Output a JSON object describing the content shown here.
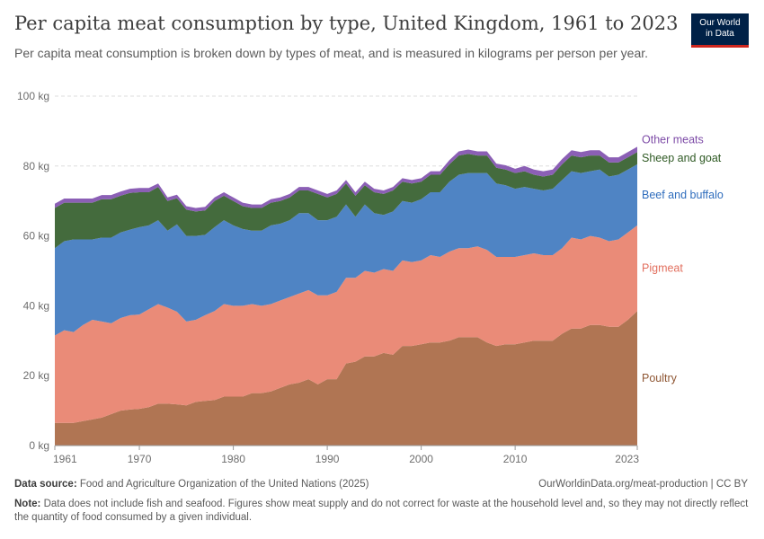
{
  "header": {
    "title": "Per capita meat consumption by type, United Kingdom, 1961 to 2023",
    "subtitle": "Per capita meat consumption is broken down by types of meat, and is measured in kilograms per person per year."
  },
  "logo": {
    "line1": "Our World",
    "line2": "in Data"
  },
  "footer": {
    "source_label": "Data source:",
    "source_text": " Food and Agriculture Organization of the United Nations (2025)",
    "url": "OurWorldinData.org/meat-production | CC BY",
    "note_label": "Note:",
    "note_text": " Data does not include fish and seafood. Figures show meat supply and do not correct for waste at the household level and, so they may not directly reflect the quantity of food consumed by a given individual."
  },
  "colors": {
    "Poultry": "#b07553",
    "Pigmeat": "#ea8b78",
    "Beef and buffalo": "#4f84c4",
    "Sheep and goat": "#446b3d",
    "Other meats": "#8b5fb5",
    "label_Poultry": "#8f5734",
    "label_Pigmeat": "#e2705f",
    "label_Beef and buffalo": "#2f6dbd",
    "label_Sheep and goat": "#2f5a24",
    "label_Other meats": "#7d4ba7"
  },
  "chart_data": {
    "type": "area",
    "stacked": true,
    "xlim": [
      1961,
      2023
    ],
    "ylim": [
      0,
      100
    ],
    "x_ticks": [
      "1961",
      "1970",
      "1980",
      "1990",
      "2000",
      "2010",
      "2023"
    ],
    "y_ticks": [
      "0 kg",
      "20 kg",
      "40 kg",
      "60 kg",
      "80 kg",
      "100 kg"
    ],
    "grid": "horizontal dashed",
    "legend": "right, labels at series ends",
    "x": [
      1961,
      1962,
      1963,
      1964,
      1965,
      1966,
      1967,
      1968,
      1969,
      1970,
      1971,
      1972,
      1973,
      1974,
      1975,
      1976,
      1977,
      1978,
      1979,
      1980,
      1981,
      1982,
      1983,
      1984,
      1985,
      1986,
      1987,
      1988,
      1989,
      1990,
      1991,
      1992,
      1993,
      1994,
      1995,
      1996,
      1997,
      1998,
      1999,
      2000,
      2001,
      2002,
      2003,
      2004,
      2005,
      2006,
      2007,
      2008,
      2009,
      2010,
      2011,
      2012,
      2013,
      2014,
      2015,
      2016,
      2017,
      2018,
      2019,
      2020,
      2021,
      2022,
      2023
    ],
    "series": [
      {
        "name": "Poultry",
        "values": [
          6.5,
          6.5,
          6.5,
          7.0,
          7.5,
          8.0,
          9.0,
          10.0,
          10.3,
          10.5,
          11.0,
          12.0,
          12.0,
          11.8,
          11.5,
          12.5,
          12.8,
          13.0,
          14.0,
          14.0,
          14.0,
          15.0,
          15.0,
          15.5,
          16.5,
          17.5,
          18.0,
          19.0,
          17.5,
          19.0,
          19.0,
          23.5,
          24.0,
          25.5,
          25.5,
          26.5,
          26.0,
          28.5,
          28.5,
          29.0,
          29.5,
          29.5,
          30.0,
          31.0,
          31.0,
          31.0,
          29.5,
          28.5,
          29.0,
          29.0,
          29.5,
          30.0,
          30.0,
          30.0,
          32.0,
          33.5,
          33.5,
          34.5,
          34.5,
          34.0,
          34.0,
          36.0,
          38.5
        ]
      },
      {
        "name": "Pigmeat",
        "values": [
          25.0,
          26.5,
          26.0,
          27.5,
          28.5,
          27.5,
          26.0,
          26.5,
          27.0,
          27.0,
          28.0,
          28.5,
          27.5,
          26.5,
          24.0,
          23.5,
          24.5,
          25.5,
          26.5,
          26.0,
          26.0,
          25.5,
          25.0,
          25.0,
          25.0,
          25.0,
          25.5,
          25.5,
          25.5,
          24.0,
          25.0,
          24.5,
          24.0,
          24.5,
          24.0,
          24.0,
          24.0,
          24.5,
          24.0,
          24.0,
          25.0,
          24.5,
          25.5,
          25.5,
          25.5,
          26.0,
          26.5,
          25.5,
          25.0,
          25.0,
          25.0,
          25.0,
          24.5,
          24.5,
          24.5,
          26.0,
          25.5,
          25.5,
          25.0,
          24.5,
          25.0,
          25.0,
          24.5
        ]
      },
      {
        "name": "Beef and buffalo",
        "values": [
          25.0,
          25.5,
          26.5,
          24.5,
          23.0,
          24.0,
          24.5,
          24.5,
          24.5,
          25.0,
          24.0,
          24.0,
          22.0,
          25.0,
          24.5,
          24.0,
          23.0,
          24.0,
          24.0,
          23.0,
          22.0,
          21.0,
          21.5,
          22.5,
          22.0,
          22.0,
          23.0,
          22.0,
          21.5,
          21.5,
          21.5,
          21.0,
          17.5,
          19.0,
          17.0,
          15.5,
          17.0,
          17.0,
          17.0,
          17.5,
          18.0,
          18.5,
          20.0,
          21.0,
          21.5,
          21.0,
          22.0,
          21.0,
          20.5,
          19.5,
          19.5,
          18.5,
          18.5,
          19.0,
          19.5,
          19.0,
          19.0,
          18.5,
          19.5,
          18.5,
          18.5,
          18.0,
          17.5
        ]
      },
      {
        "name": "Sheep and goat",
        "values": [
          11.5,
          11.0,
          10.5,
          10.5,
          10.5,
          11.0,
          11.0,
          10.5,
          10.5,
          10.0,
          9.5,
          9.5,
          8.5,
          7.5,
          7.5,
          7.0,
          7.0,
          7.5,
          7.0,
          7.0,
          6.5,
          6.5,
          6.5,
          6.5,
          6.5,
          6.5,
          6.5,
          6.5,
          7.5,
          6.5,
          6.5,
          6.0,
          6.0,
          5.5,
          6.0,
          6.0,
          6.0,
          5.5,
          5.5,
          5.0,
          5.0,
          5.0,
          5.0,
          5.5,
          5.5,
          5.0,
          5.0,
          4.5,
          4.5,
          4.5,
          4.5,
          4.0,
          4.0,
          4.0,
          4.5,
          4.5,
          4.5,
          4.5,
          4.0,
          4.0,
          3.5,
          3.5,
          3.5
        ]
      },
      {
        "name": "Other meats",
        "values": [
          1.2,
          1.2,
          1.2,
          1.2,
          1.2,
          1.2,
          1.2,
          1.2,
          1.2,
          1.2,
          1.2,
          1.0,
          1.0,
          1.0,
          1.0,
          1.0,
          1.0,
          1.0,
          1.0,
          1.0,
          1.0,
          1.0,
          1.0,
          1.0,
          1.0,
          1.0,
          1.0,
          1.0,
          1.0,
          1.0,
          1.0,
          1.0,
          1.0,
          1.0,
          1.0,
          1.0,
          1.0,
          1.0,
          1.0,
          1.0,
          1.0,
          1.0,
          1.2,
          1.2,
          1.2,
          1.2,
          1.2,
          1.2,
          1.2,
          1.2,
          1.5,
          1.5,
          1.5,
          1.5,
          1.5,
          1.5,
          1.5,
          1.5,
          1.5,
          1.5,
          1.5,
          1.5,
          1.5
        ]
      }
    ]
  }
}
